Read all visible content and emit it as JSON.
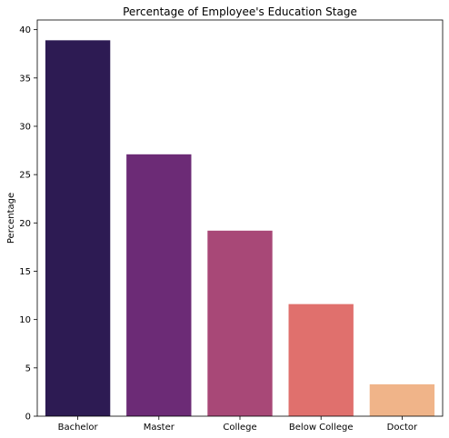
{
  "chart_data": {
    "type": "bar",
    "title": "Percentage of Employee's Education Stage",
    "xlabel": "",
    "ylabel": "Percentage",
    "categories": [
      "Bachelor",
      "Master",
      "College",
      "Below College",
      "Doctor"
    ],
    "values": [
      38.9,
      27.1,
      19.2,
      11.6,
      3.3
    ],
    "colors": [
      "#2d1b53",
      "#6c2b76",
      "#a84877",
      "#e0706d",
      "#f0b489"
    ],
    "ylim": [
      0,
      41
    ],
    "yticks": [
      "0",
      "5",
      "10",
      "15",
      "20",
      "25",
      "30",
      "35",
      "40"
    ],
    "grid": false,
    "legend": "none"
  }
}
